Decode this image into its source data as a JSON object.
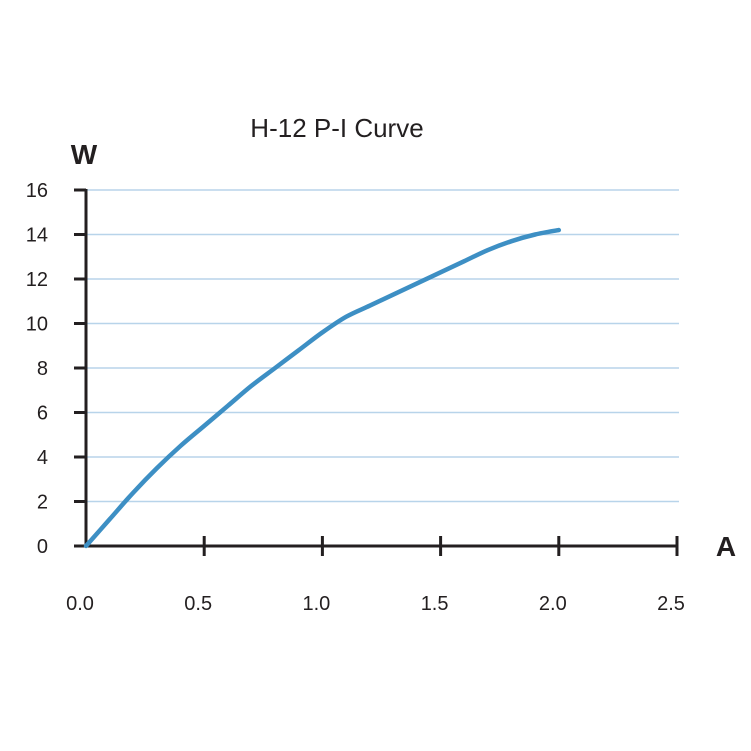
{
  "chart_data": {
    "type": "line",
    "title": "H-12 P-I Curve",
    "xlabel": "A",
    "ylabel": "W",
    "xlim": [
      0,
      2.5
    ],
    "ylim": [
      0,
      16
    ],
    "x_ticks": [
      "0.0",
      "0.5",
      "1.0",
      "1.5",
      "2.0",
      "2.5"
    ],
    "x_tick_values": [
      0,
      0.5,
      1.0,
      1.5,
      2.0,
      2.5
    ],
    "y_ticks": [
      "0",
      "2",
      "4",
      "6",
      "8",
      "10",
      "12",
      "14",
      "16"
    ],
    "y_tick_values": [
      0,
      2,
      4,
      6,
      8,
      10,
      12,
      14,
      16
    ],
    "grid": "horizontal",
    "series": [
      {
        "x": [
          0.0,
          0.1,
          0.2,
          0.3,
          0.4,
          0.5,
          0.6,
          0.7,
          0.8,
          0.9,
          1.0,
          1.1,
          1.2,
          1.3,
          1.4,
          1.5,
          1.6,
          1.7,
          1.8,
          1.9,
          2.0
        ],
        "y": [
          0.0,
          1.2,
          2.4,
          3.5,
          4.5,
          5.4,
          6.3,
          7.2,
          8.0,
          8.8,
          9.6,
          10.3,
          10.8,
          11.3,
          11.8,
          12.3,
          12.8,
          13.3,
          13.7,
          14.0,
          14.2
        ]
      }
    ],
    "colors": {
      "line": "#3d8fc4",
      "grid": "#b8d4ea",
      "axis": "#231f20"
    }
  }
}
